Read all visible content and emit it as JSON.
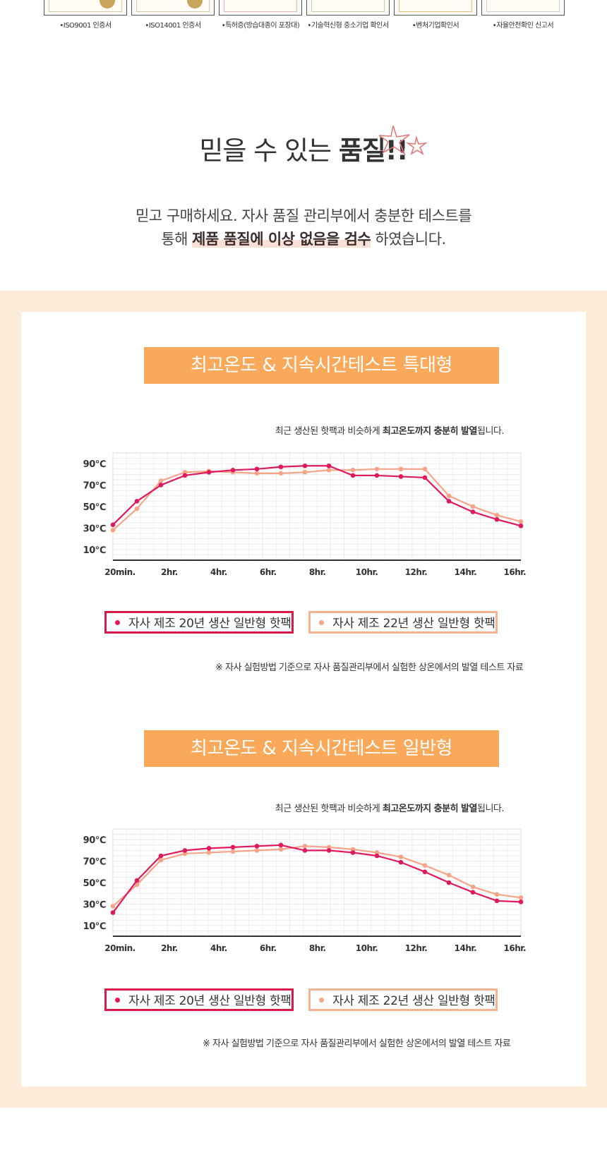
{
  "certificates": [
    {
      "caption": "•ISO9001 인증서"
    },
    {
      "caption": "•ISO14001 인증서"
    },
    {
      "caption": "•특허증(방습대종이 포장대)"
    },
    {
      "caption": "•기술혁신형 중소기업 확인서"
    },
    {
      "caption": "•벤처기업확인서"
    },
    {
      "caption": "•자율안전확인 신고서"
    }
  ],
  "quality": {
    "title_plain": "믿을 수 있는 ",
    "title_bold": "품질!!",
    "line1": "믿고 구매하세요. 자사 품질 관리부에서 충분한 테스트를",
    "line2_pre": "통해 ",
    "line2_highlight": "제품 품질에 이상 없음을 검수",
    "line2_post": " 하였습니다."
  },
  "colors": {
    "accent_orange": "#faa85a",
    "series_2020": "#e0195e",
    "series_2022": "#f5a488",
    "peach_bg": "#fdecd9"
  },
  "chart_data": [
    {
      "type": "line",
      "title": "최고온도 & 지속시간테스트 특대형",
      "subtitle_pre": "최근 생산된 핫팩과 비슷하게 ",
      "subtitle_bold": "최고온도까지 충분히 발열",
      "subtitle_post": "됩니다.",
      "x_ticks": [
        "20min.",
        "2hr.",
        "4hr.",
        "6hr.",
        "8hr.",
        "10hr.",
        "12hr.",
        "14hr.",
        "16hr."
      ],
      "y_ticks": [
        "90℃",
        "70℃",
        "50℃",
        "30℃",
        "10℃"
      ],
      "ylim": [
        0,
        100
      ],
      "grid": true,
      "legend_placement": "bottom",
      "series": [
        {
          "name": "자사 제조 20년 생산 일반형 핫팩",
          "values": [
            33,
            55,
            70,
            79,
            82,
            84,
            85,
            87,
            88,
            88,
            79,
            79,
            78,
            77,
            55,
            45,
            38,
            32
          ]
        },
        {
          "name": "자사 제조 22년 생산 일반형 핫팩",
          "values": [
            28,
            48,
            74,
            82,
            83,
            82,
            81,
            81,
            82,
            84,
            84,
            85,
            85,
            85,
            60,
            50,
            42,
            36
          ]
        }
      ],
      "footnote": "※ 자사 실험방법 기준으로 자사 품질관리부에서 실험한 상온에서의 발열 테스트 자료"
    },
    {
      "type": "line",
      "title": "최고온도 & 지속시간테스트 일반형",
      "subtitle_pre": "최근 생산된 핫팩과 비슷하게 ",
      "subtitle_bold": "최고온도까지 충분히 발열",
      "subtitle_post": "됩니다.",
      "x_ticks": [
        "20min.",
        "2hr.",
        "4hr.",
        "6hr.",
        "8hr.",
        "10hr.",
        "12hr.",
        "14hr.",
        "16hr."
      ],
      "y_ticks": [
        "90℃",
        "70℃",
        "50℃",
        "30℃",
        "10℃"
      ],
      "ylim": [
        0,
        100
      ],
      "grid": true,
      "legend_placement": "bottom",
      "series": [
        {
          "name": "자사 제조 20년 생산 일반형 핫팩",
          "values": [
            22,
            52,
            75,
            80,
            82,
            83,
            84,
            85,
            80,
            80,
            78,
            75,
            69,
            60,
            50,
            41,
            33,
            32
          ]
        },
        {
          "name": "자사 제조 22년 생산 일반형 핫팩",
          "values": [
            28,
            48,
            71,
            77,
            78,
            79,
            80,
            81,
            84,
            83,
            81,
            78,
            74,
            66,
            57,
            46,
            39,
            36
          ]
        }
      ],
      "footnote": "※ 자사 실험방법 기준으로 자사 품질관리부에서 실험한 상온에서의 발열 테스트 자료"
    }
  ]
}
